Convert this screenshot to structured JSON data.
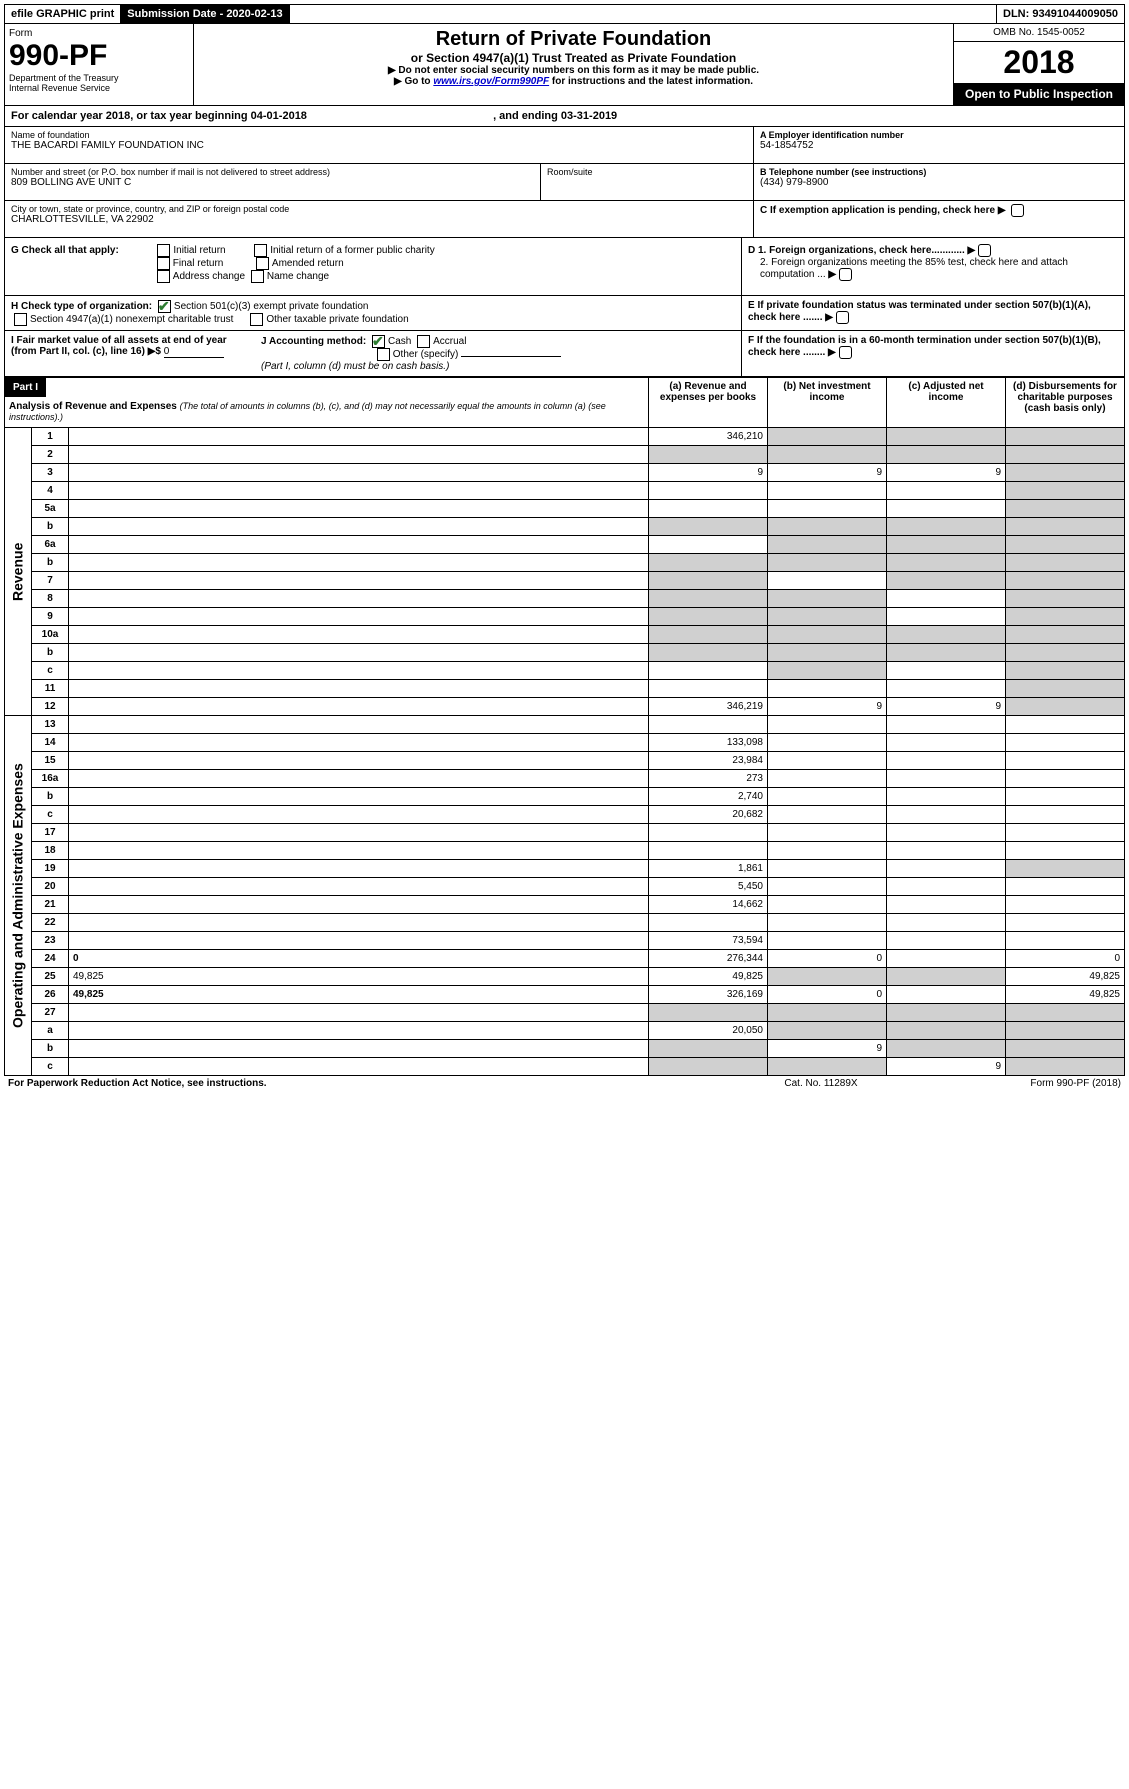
{
  "topbar": {
    "efile": "efile GRAPHIC print",
    "sub_label": "Submission Date - 2020-02-13",
    "dln": "DLN: 93491044009050"
  },
  "header": {
    "form_word": "Form",
    "form_num": "990-PF",
    "dept": "Department of the Treasury\nInternal Revenue Service",
    "title": "Return of Private Foundation",
    "subtitle": "or Section 4947(a)(1) Trust Treated as Private Foundation",
    "note1": "▶ Do not enter social security numbers on this form as it may be made public.",
    "note2_pre": "▶ Go to ",
    "note2_link": "www.irs.gov/Form990PF",
    "note2_post": " for instructions and the latest information.",
    "omb": "OMB No. 1545-0052",
    "year": "2018",
    "open": "Open to Public Inspection"
  },
  "cal_line": {
    "pre": "For calendar year 2018, or tax year beginning ",
    "begin": "04-01-2018",
    "mid": " , and ending ",
    "end": "03-31-2019"
  },
  "info": {
    "name_label": "Name of foundation",
    "name": "THE BACARDI FAMILY FOUNDATION INC",
    "addr_label": "Number and street (or P.O. box number if mail is not delivered to street address)",
    "addr": "809 BOLLING AVE UNIT C",
    "room_label": "Room/suite",
    "city_label": "City or town, state or province, country, and ZIP or foreign postal code",
    "city": "CHARLOTTESVILLE, VA  22902",
    "a_label": "A Employer identification number",
    "a_val": "54-1854752",
    "b_label": "B Telephone number (see instructions)",
    "b_val": "(434) 979-8900",
    "c_label": "C If exemption application is pending, check here"
  },
  "g": {
    "label": "G Check all that apply:",
    "opts": [
      "Initial return",
      "Initial return of a former public charity",
      "Final return",
      "Amended return",
      "Address change",
      "Name change"
    ]
  },
  "d": {
    "d1": "D 1. Foreign organizations, check here............",
    "d2": "2. Foreign organizations meeting the 85% test, check here and attach computation ...",
    "e": "E  If private foundation status was terminated under section 507(b)(1)(A), check here .......",
    "f": "F  If the foundation is in a 60-month termination under section 507(b)(1)(B), check here ........"
  },
  "h": {
    "label": "H Check type of organization:",
    "opt1": "Section 501(c)(3) exempt private foundation",
    "opt2": "Section 4947(a)(1) nonexempt charitable trust",
    "opt3": "Other taxable private foundation"
  },
  "i": {
    "label": "I Fair market value of all assets at end of year (from Part II, col. (c), line 16) ▶$",
    "val": "0"
  },
  "j": {
    "label": "J Accounting method:",
    "cash": "Cash",
    "accrual": "Accrual",
    "other": "Other (specify)",
    "note": "(Part I, column (d) must be on cash basis.)"
  },
  "part1": {
    "tag": "Part I",
    "title": "Analysis of Revenue and Expenses",
    "title_note": "(The total of amounts in columns (b), (c), and (d) may not necessarily equal the amounts in column (a) (see instructions).)",
    "col_a": "(a)   Revenue and expenses per books",
    "col_b": "(b)  Net investment income",
    "col_c": "(c)  Adjusted net income",
    "col_d": "(d)  Disbursements for charitable purposes (cash basis only)",
    "revenue_label": "Revenue",
    "expense_label": "Operating and Administrative Expenses"
  },
  "rows": [
    {
      "n": "1",
      "d": "",
      "a": "346,210",
      "b": "",
      "c": "",
      "shade_b": true,
      "shade_c": true,
      "shade_d": true
    },
    {
      "n": "2",
      "d": "",
      "a": "",
      "b": "",
      "c": "",
      "shade_all": true
    },
    {
      "n": "3",
      "d": "",
      "a": "9",
      "b": "9",
      "c": "9",
      "shade_d": true
    },
    {
      "n": "4",
      "d": "",
      "a": "",
      "b": "",
      "c": "",
      "shade_d": true
    },
    {
      "n": "5a",
      "d": "",
      "a": "",
      "b": "",
      "c": "",
      "shade_d": true
    },
    {
      "n": "b",
      "d": "",
      "a": "",
      "b": "",
      "c": "",
      "shade_all": true
    },
    {
      "n": "6a",
      "d": "",
      "a": "",
      "b": "",
      "c": "",
      "shade_b": true,
      "shade_c": true,
      "shade_d": true
    },
    {
      "n": "b",
      "d": "",
      "a": "",
      "b": "",
      "c": "",
      "shade_all": true
    },
    {
      "n": "7",
      "d": "",
      "a": "",
      "b": "",
      "c": "",
      "shade_a": true,
      "shade_c": true,
      "shade_d": true
    },
    {
      "n": "8",
      "d": "",
      "a": "",
      "b": "",
      "c": "",
      "shade_a": true,
      "shade_b": true,
      "shade_d": true
    },
    {
      "n": "9",
      "d": "",
      "a": "",
      "b": "",
      "c": "",
      "shade_a": true,
      "shade_b": true,
      "shade_d": true
    },
    {
      "n": "10a",
      "d": "",
      "a": "",
      "b": "",
      "c": "",
      "shade_all": true
    },
    {
      "n": "b",
      "d": "",
      "a": "",
      "b": "",
      "c": "",
      "shade_all": true
    },
    {
      "n": "c",
      "d": "",
      "a": "",
      "b": "",
      "c": "",
      "shade_b": true,
      "shade_d": true
    },
    {
      "n": "11",
      "d": "",
      "a": "",
      "b": "",
      "c": "",
      "shade_d": true
    },
    {
      "n": "12",
      "d": "",
      "a": "346,219",
      "b": "9",
      "c": "9",
      "bold": true,
      "shade_d": true
    }
  ],
  "erows": [
    {
      "n": "13",
      "d": "",
      "a": "",
      "b": "",
      "c": ""
    },
    {
      "n": "14",
      "d": "",
      "a": "133,098",
      "b": "",
      "c": ""
    },
    {
      "n": "15",
      "d": "",
      "a": "23,984",
      "b": "",
      "c": ""
    },
    {
      "n": "16a",
      "d": "",
      "a": "273",
      "b": "",
      "c": ""
    },
    {
      "n": "b",
      "d": "",
      "a": "2,740",
      "b": "",
      "c": ""
    },
    {
      "n": "c",
      "d": "",
      "a": "20,682",
      "b": "",
      "c": ""
    },
    {
      "n": "17",
      "d": "",
      "a": "",
      "b": "",
      "c": ""
    },
    {
      "n": "18",
      "d": "",
      "a": "",
      "b": "",
      "c": ""
    },
    {
      "n": "19",
      "d": "",
      "a": "1,861",
      "b": "",
      "c": "",
      "shade_d": true
    },
    {
      "n": "20",
      "d": "",
      "a": "5,450",
      "b": "",
      "c": ""
    },
    {
      "n": "21",
      "d": "",
      "a": "14,662",
      "b": "",
      "c": ""
    },
    {
      "n": "22",
      "d": "",
      "a": "",
      "b": "",
      "c": ""
    },
    {
      "n": "23",
      "d": "",
      "a": "73,594",
      "b": "",
      "c": ""
    },
    {
      "n": "24",
      "d": "0",
      "a": "276,344",
      "b": "0",
      "c": "",
      "bold": true
    },
    {
      "n": "25",
      "d": "49,825",
      "a": "49,825",
      "b": "",
      "c": "",
      "shade_b": true,
      "shade_c": true
    },
    {
      "n": "26",
      "d": "49,825",
      "a": "326,169",
      "b": "0",
      "c": "",
      "bold": true
    },
    {
      "n": "27",
      "d": "",
      "a": "",
      "b": "",
      "c": "",
      "shade_all": true
    },
    {
      "n": "a",
      "d": "",
      "a": "20,050",
      "b": "",
      "c": "",
      "bold": true,
      "shade_b": true,
      "shade_c": true,
      "shade_d": true
    },
    {
      "n": "b",
      "d": "",
      "a": "",
      "b": "9",
      "c": "",
      "bold": true,
      "shade_a": true,
      "shade_c": true,
      "shade_d": true
    },
    {
      "n": "c",
      "d": "",
      "a": "",
      "b": "",
      "c": "9",
      "bold": true,
      "shade_a": true,
      "shade_b": true,
      "shade_d": true
    }
  ],
  "footer": {
    "l": "For Paperwork Reduction Act Notice, see instructions.",
    "m": "Cat. No. 11289X",
    "r": "Form 990-PF (2018)"
  }
}
